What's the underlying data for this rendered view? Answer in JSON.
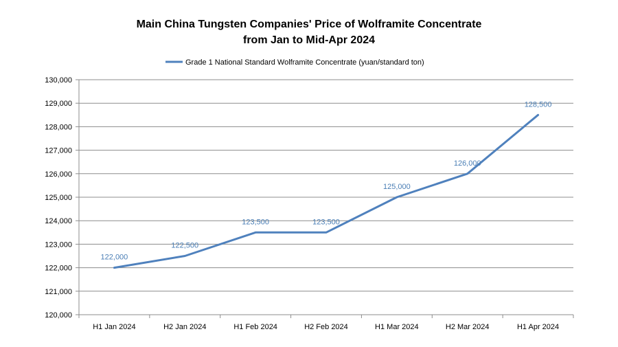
{
  "chart_data": {
    "type": "line",
    "title_line1": "Main China Tungsten Companies' Price of Wolframite Concentrate",
    "title_line2": "from Jan to Mid-Apr 2024",
    "categories": [
      "H1 Jan 2024",
      "H2 Jan 2024",
      "H1 Feb 2024",
      "H2 Feb 2024",
      "H1 Mar 2024",
      "H2 Mar 2024",
      "H1 Apr 2024"
    ],
    "series": [
      {
        "name": "Grade 1 National Standard Wolframite Concentrate (yuan/standard ton)",
        "values": [
          122000,
          122500,
          123500,
          123500,
          125000,
          126000,
          128500
        ],
        "labels": [
          "122,000",
          "122,500",
          "123,500",
          "123,500",
          "125,000",
          "126,000",
          "128,500"
        ],
        "color": "#4f81bd"
      }
    ],
    "ylim": [
      120000,
      130000
    ],
    "ystep": 1000,
    "ytick_labels": [
      "120,000",
      "121,000",
      "122,000",
      "123,000",
      "124,000",
      "125,000",
      "126,000",
      "127,000",
      "128,000",
      "129,000",
      "130,000"
    ],
    "xlabel": "",
    "ylabel": "",
    "grid": true,
    "legend_position": "top",
    "colors": {
      "line": "#4f81bd",
      "data_label": "#4a7eb5",
      "grid": "#8c8c8c",
      "axis": "#8c8c8c"
    }
  }
}
